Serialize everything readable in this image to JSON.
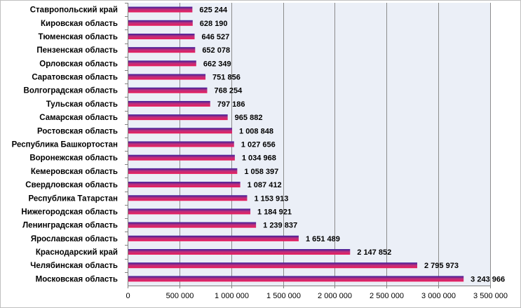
{
  "chart_data": {
    "type": "bar",
    "orientation": "horizontal",
    "categories": [
      "Ставропольский край",
      "Кировская область",
      "Тюменская область",
      "Пензенская область",
      "Орловская область",
      "Саратовская область",
      "Волгоградская область",
      "Тульская область",
      "Самарская область",
      "Ростовская область",
      "Республика  Башкортостан",
      "Воронежская область",
      "Кемеровская область",
      "Свердловская область",
      "Республика  Татарстан",
      "Нижегородская область",
      "Ленинградская область",
      "Ярославская область",
      "Краснодарский край",
      "Челябинская  область",
      "Московская область"
    ],
    "values": [
      625244,
      628190,
      646527,
      652078,
      662349,
      751856,
      768254,
      797186,
      965882,
      1008848,
      1027656,
      1034968,
      1058397,
      1087412,
      1153913,
      1184921,
      1239837,
      1651489,
      2147852,
      2795973,
      3243966
    ],
    "value_labels": [
      "625 244",
      "628 190",
      "646 527",
      "652 078",
      "662 349",
      "751 856",
      "768 254",
      "797 186",
      "965 882",
      "1 008 848",
      "1 027 656",
      "1 034 968",
      "1 058 397",
      "1 087 412",
      "1 153 913",
      "1 184 921",
      "1 239 837",
      "1 651 489",
      "2 147 852",
      "2 795 973",
      "3 243 966"
    ],
    "xlim": [
      0,
      3500000
    ],
    "x_ticks": [
      0,
      500000,
      1000000,
      1500000,
      2000000,
      2500000,
      3000000,
      3500000
    ],
    "x_tick_labels": [
      "0",
      "500 000",
      "1 000 000",
      "1 500 000",
      "2 000 000",
      "2 500 000",
      "3 000 000",
      "3 500 000"
    ],
    "grid": "vertical",
    "title": "",
    "xlabel": "",
    "ylabel": "",
    "colors": {
      "bar_top": "#3a1e9c",
      "bar_mid": "#c1307c",
      "bar_bottom": "#ea1c5a",
      "plot_background": "#ebeff7",
      "grid": "#8c8c8c"
    }
  }
}
